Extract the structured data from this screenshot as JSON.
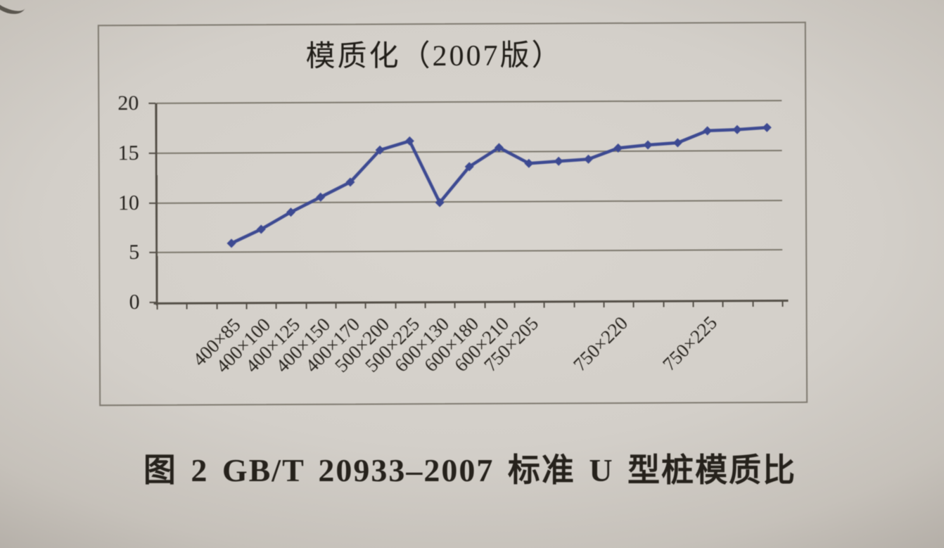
{
  "figure": {
    "caption": "图 2 GB/T 20933–2007 标准 U 型桩模质比"
  },
  "chart_data": {
    "type": "line",
    "title": "模质化（2007版）",
    "xlabel": "",
    "ylabel": "",
    "ylim": [
      0,
      20
    ],
    "y_ticks": [
      0,
      5,
      10,
      15,
      20
    ],
    "grid": true,
    "legend": "none",
    "marker": "diamond",
    "line_color": "#3d4a92",
    "axis_color": "#544f47",
    "gridline_color": "#6d695d",
    "n_slots": 21,
    "first_data_slot": 3,
    "values": [
      5.9,
      7.3,
      9.0,
      10.5,
      12.0,
      15.2,
      16.1,
      9.9,
      13.5,
      15.4,
      13.8,
      14.0,
      14.2,
      15.3,
      15.6,
      15.8,
      17.0,
      17.1,
      17.3
    ],
    "x_tick_labels": [
      "400×85",
      "400×100",
      "400×125",
      "400×150",
      "400×170",
      "500×200",
      "500×225",
      "600×130",
      "600×180",
      "600×210",
      "750×205",
      "750×220",
      "750×225"
    ],
    "label_slots": [
      3,
      4,
      5,
      6,
      7,
      8,
      9,
      10,
      11,
      12,
      13,
      16,
      19
    ]
  }
}
